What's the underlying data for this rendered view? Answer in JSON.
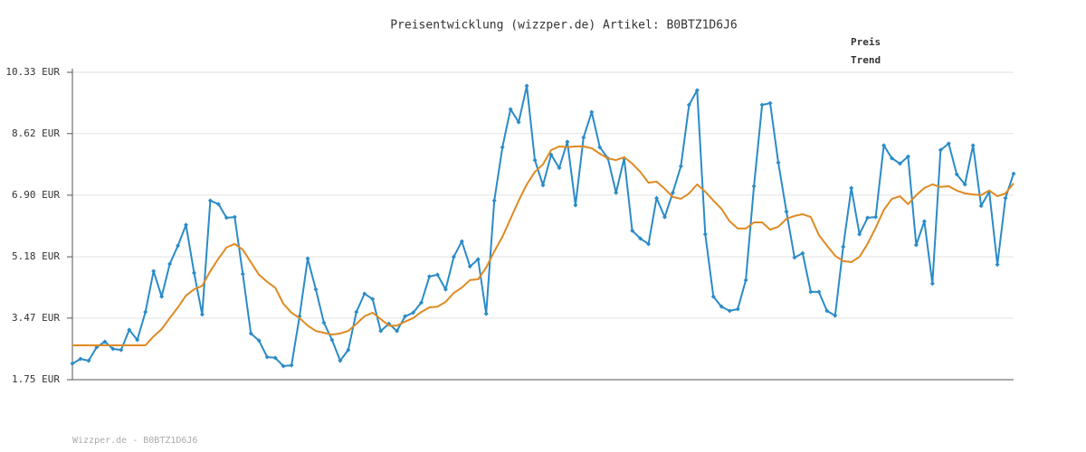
{
  "chart_data": {
    "type": "line",
    "title": "Preisentwicklung (wizzper.de) Artikel: B0BTZ1D6J6",
    "footer": "Wizzper.de - B0BTZ1D6J6",
    "ylim": [
      1.75,
      10.33
    ],
    "yticks": [
      {
        "value": 1.75,
        "label": "1.75 EUR"
      },
      {
        "value": 3.47,
        "label": "3.47 EUR"
      },
      {
        "value": 5.18,
        "label": "5.18 EUR"
      },
      {
        "value": 6.9,
        "label": "6.90 EUR"
      },
      {
        "value": 8.62,
        "label": "8.62 EUR"
      },
      {
        "value": 10.33,
        "label": "10.33 EUR"
      }
    ],
    "grid": true,
    "legend": "top-right",
    "series": [
      {
        "name": "Preis",
        "color": "#2a8bc8",
        "markers": true,
        "values": [
          2.2,
          2.33,
          2.28,
          2.66,
          2.81,
          2.61,
          2.58,
          3.14,
          2.86,
          3.64,
          4.78,
          4.07,
          4.98,
          5.49,
          6.07,
          4.73,
          3.57,
          6.75,
          6.65,
          6.27,
          6.29,
          4.7,
          3.04,
          2.84,
          2.38,
          2.36,
          2.13,
          2.15,
          3.52,
          5.13,
          4.27,
          3.34,
          2.86,
          2.28,
          2.58,
          3.64,
          4.15,
          4.0,
          3.11,
          3.31,
          3.11,
          3.52,
          3.62,
          3.9,
          4.63,
          4.68,
          4.27,
          5.18,
          5.61,
          4.91,
          5.11,
          3.59,
          6.75,
          8.24,
          9.3,
          8.94,
          9.95,
          7.88,
          7.18,
          8.03,
          7.66,
          8.39,
          6.62,
          8.51,
          9.22,
          8.24,
          7.93,
          6.97,
          7.93,
          5.91,
          5.69,
          5.54,
          6.82,
          6.29,
          6.97,
          7.71,
          9.42,
          9.83,
          5.81,
          4.07,
          3.79,
          3.67,
          3.72,
          4.53,
          7.15,
          9.42,
          9.47,
          7.81,
          6.44,
          5.16,
          5.28,
          4.2,
          4.2,
          3.67,
          3.54,
          5.46,
          7.1,
          5.81,
          6.27,
          6.29,
          8.29,
          7.93,
          7.78,
          7.98,
          5.51,
          6.17,
          4.43,
          8.16,
          8.34,
          7.48,
          7.2,
          8.29,
          6.6,
          7.0,
          4.96,
          6.82,
          7.5
        ]
      },
      {
        "name": "Trend",
        "color": "#de8a22",
        "markers": false,
        "values": [
          2.71,
          2.71,
          2.71,
          2.71,
          2.71,
          2.71,
          2.71,
          2.71,
          2.71,
          2.71,
          2.96,
          3.16,
          3.47,
          3.77,
          4.1,
          4.27,
          4.37,
          4.78,
          5.13,
          5.44,
          5.54,
          5.38,
          5.03,
          4.68,
          4.48,
          4.32,
          3.87,
          3.62,
          3.47,
          3.26,
          3.11,
          3.06,
          3.01,
          3.04,
          3.11,
          3.31,
          3.52,
          3.62,
          3.44,
          3.26,
          3.26,
          3.37,
          3.47,
          3.64,
          3.77,
          3.79,
          3.92,
          4.17,
          4.32,
          4.53,
          4.55,
          4.88,
          5.33,
          5.74,
          6.24,
          6.75,
          7.2,
          7.55,
          7.76,
          8.16,
          8.26,
          8.24,
          8.26,
          8.26,
          8.21,
          8.06,
          7.93,
          7.88,
          7.96,
          7.78,
          7.55,
          7.25,
          7.28,
          7.08,
          6.85,
          6.8,
          6.95,
          7.2,
          7.0,
          6.75,
          6.52,
          6.17,
          5.97,
          5.97,
          6.14,
          6.14,
          5.94,
          6.02,
          6.24,
          6.32,
          6.37,
          6.29,
          5.79,
          5.49,
          5.21,
          5.06,
          5.03,
          5.18,
          5.54,
          5.99,
          6.49,
          6.8,
          6.87,
          6.65,
          6.9,
          7.1,
          7.2,
          7.13,
          7.15,
          7.03,
          6.95,
          6.92,
          6.9,
          7.03,
          6.87,
          6.95,
          7.23
        ]
      }
    ]
  }
}
